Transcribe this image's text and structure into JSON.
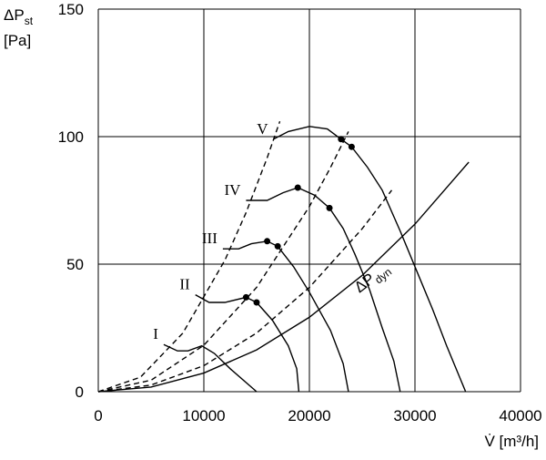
{
  "chart_data": {
    "type": "line",
    "y_label": "ΔP",
    "y_label_sub": "st",
    "y_unit": "[Pa]",
    "x_label": "V̇ [m³/h]",
    "xlim": [
      0,
      40000
    ],
    "ylim": [
      0,
      150
    ],
    "xticks": [
      0,
      10000,
      20000,
      30000,
      40000
    ],
    "yticks": [
      0,
      50,
      100,
      150
    ],
    "grid": true,
    "series": [
      {
        "name": "I",
        "color": "#000",
        "dash": false,
        "x": [
          6200,
          7500,
          8500,
          9800,
          11000,
          12500,
          15000
        ],
        "values": [
          18.5,
          16,
          16,
          18,
          15,
          9,
          0
        ]
      },
      {
        "name": "II",
        "color": "#000",
        "dash": false,
        "x": [
          9200,
          10500,
          12000,
          14000,
          15000,
          16500,
          18000,
          18800,
          19000
        ],
        "values": [
          38,
          35,
          35,
          37,
          35,
          28,
          18,
          9,
          0
        ]
      },
      {
        "name": "III",
        "color": "#000",
        "dash": false,
        "x": [
          11800,
          13300,
          14500,
          16000,
          17000,
          18500,
          20000,
          22000,
          23200,
          23700
        ],
        "values": [
          56,
          56,
          58,
          59,
          57,
          49,
          39,
          24,
          11,
          0
        ]
      },
      {
        "name": "IV",
        "color": "#000",
        "dash": false,
        "x": [
          14000,
          16000,
          17500,
          18900,
          20500,
          21900,
          23200,
          24300,
          25700,
          26900,
          28000,
          28600
        ],
        "values": [
          75,
          75,
          78,
          80,
          77,
          72,
          64,
          54,
          40,
          25,
          12,
          0
        ]
      },
      {
        "name": "V",
        "color": "#000",
        "dash": false,
        "x": [
          16600,
          18000,
          20000,
          21700,
          23000,
          24000,
          25500,
          26900,
          28600,
          30300,
          31700,
          33000,
          34000,
          34800
        ],
        "values": [
          99,
          102,
          104,
          103,
          99,
          96,
          88,
          79,
          63,
          46,
          32,
          18,
          8,
          0
        ]
      },
      {
        "color": "#000",
        "dash": true,
        "x": [
          0,
          4000,
          8000,
          12000,
          14000,
          16000,
          17200
        ],
        "values": [
          0,
          5.7,
          22.9,
          51.6,
          70.2,
          91.7,
          106
        ]
      },
      {
        "color": "#000",
        "dash": true,
        "x": [
          0,
          5000,
          10000,
          15000,
          20000,
          22000,
          23700
        ],
        "values": [
          0,
          4.5,
          18.2,
          40.9,
          72.6,
          87.9,
          102
        ]
      },
      {
        "color": "#000",
        "dash": true,
        "x": [
          0,
          5000,
          10000,
          15000,
          20000,
          25000,
          27800
        ],
        "values": [
          0,
          2.6,
          10.2,
          23,
          40.9,
          63.9,
          79
        ]
      },
      {
        "name": "ΔP",
        "name_sub": "dyn",
        "color": "#000",
        "dash": false,
        "x": [
          0,
          5000,
          10000,
          15000,
          20000,
          25000,
          30000,
          35100
        ],
        "values": [
          0,
          1.8,
          7.3,
          16.4,
          29.2,
          45.6,
          65.7,
          90
        ]
      }
    ],
    "markers": {
      "x": [
        14000,
        15000,
        16000,
        17000,
        18900,
        21900,
        23000,
        24000
      ],
      "y": [
        37,
        35,
        59,
        57,
        80,
        72,
        99,
        96
      ]
    }
  }
}
